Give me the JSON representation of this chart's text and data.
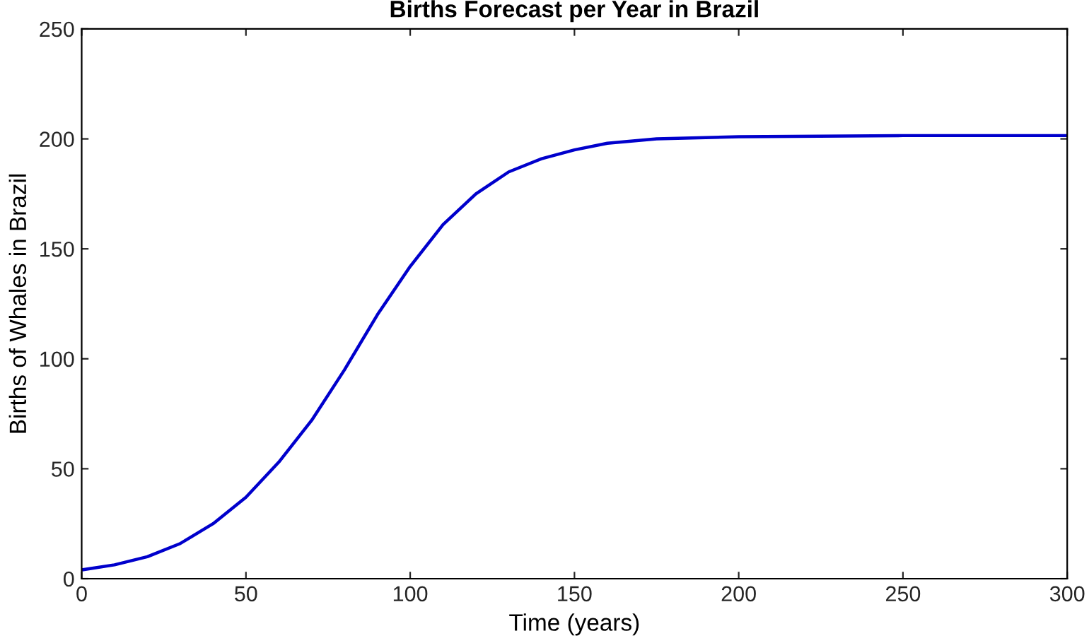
{
  "chart_data": {
    "type": "line",
    "title": "Births Forecast per Year in Brazil",
    "xlabel": "Time (years)",
    "ylabel": "Births of Whales in Brazil",
    "x": [
      0,
      10,
      20,
      30,
      40,
      50,
      60,
      70,
      80,
      90,
      100,
      110,
      120,
      130,
      140,
      150,
      160,
      175,
      200,
      250,
      300
    ],
    "series": [
      {
        "color": "#0000cc",
        "values": [
          4,
          6.3,
          10,
          16,
          25,
          37,
          53,
          72,
          95,
          120,
          142,
          161,
          175,
          185,
          191,
          195,
          198,
          200,
          201,
          201.5,
          201.5
        ]
      }
    ],
    "xlim": [
      0,
      300
    ],
    "ylim": [
      0,
      250
    ],
    "xticks": [
      0,
      50,
      100,
      150,
      200,
      250,
      300
    ],
    "yticks": [
      0,
      50,
      100,
      150,
      200,
      250
    ],
    "grid": false,
    "legend": false,
    "marker": "none",
    "line_style": "solid"
  }
}
